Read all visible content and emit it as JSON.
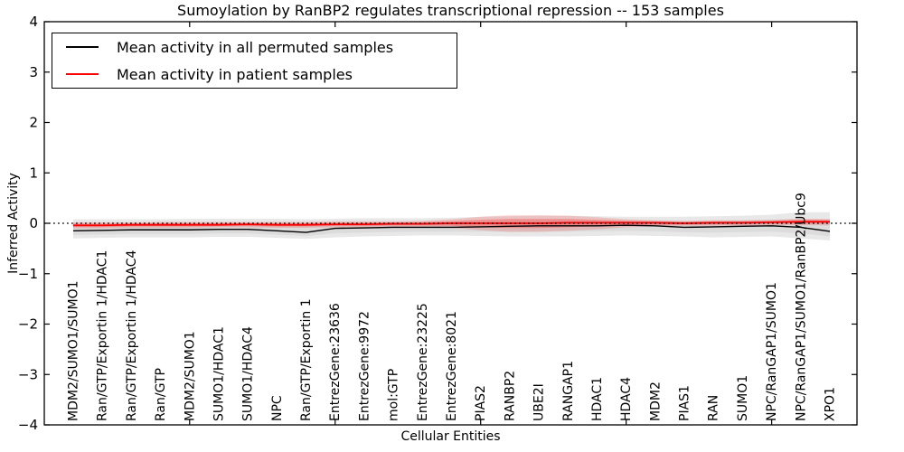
{
  "figure": {
    "title": "Sumoylation by RanBP2 regulates transcriptional repression -- 153 samples",
    "xlabel": "Cellular Entities",
    "ylabel": "Inferred Activity",
    "legend": [
      {
        "label": "Mean activity in all permuted samples",
        "color": "#000000"
      },
      {
        "label": "Mean activity in patient samples",
        "color": "#ff0000"
      }
    ]
  },
  "chart_data": {
    "type": "line",
    "title": "Sumoylation by RanBP2 regulates transcriptional repression -- 153 samples",
    "xlabel": "Cellular Entities",
    "ylabel": "Inferred Activity",
    "ylim": [
      -4,
      4
    ],
    "yticks": [
      4,
      3,
      2,
      1,
      0,
      -1,
      -2,
      -3,
      -4
    ],
    "ytick_labels": [
      "4",
      "3",
      "2",
      "1",
      "0",
      "−1",
      "−2",
      "−3",
      "−4"
    ],
    "grid": false,
    "legend_position": "upper left",
    "zero_line": {
      "y": 0,
      "style": "dotted",
      "color": "#000000"
    },
    "categories": [
      "MDM2/SUMO1/SUMO1",
      "Ran/GTP/Exportin 1/HDAC1",
      "Ran/GTP/Exportin 1/HDAC4",
      "Ran/GTP",
      "MDM2/SUMO1",
      "SUMO1/HDAC1",
      "SUMO1/HDAC4",
      "NPC",
      "Ran/GTP/Exportin 1",
      "EntrezGene:23636",
      "EntrezGene:9972",
      "mol:GTP",
      "EntrezGene:23225",
      "EntrezGene:8021",
      "PIAS2",
      "RANBP2",
      "UBE2I",
      "RANGAP1",
      "HDAC1",
      "HDAC4",
      "MDM2",
      "PIAS1",
      "RAN",
      "SUMO1",
      "NPC/RanGAP1/SUMO1",
      "NPC/RanGAP1/SUMO1/RanBP2/Ubc9",
      "XPO1"
    ],
    "series": [
      {
        "name": "Mean activity in all permuted samples",
        "color": "#000000",
        "values": [
          -0.15,
          -0.14,
          -0.13,
          -0.13,
          -0.13,
          -0.12,
          -0.12,
          -0.15,
          -0.18,
          -0.1,
          -0.09,
          -0.08,
          -0.08,
          -0.08,
          -0.07,
          -0.06,
          -0.05,
          -0.05,
          -0.05,
          -0.04,
          -0.05,
          -0.08,
          -0.07,
          -0.06,
          -0.05,
          -0.08,
          -0.16
        ]
      },
      {
        "name": "Mean activity in patient samples",
        "color": "#ff0000",
        "values": [
          -0.04,
          -0.04,
          -0.03,
          -0.03,
          -0.03,
          -0.03,
          -0.02,
          -0.03,
          -0.03,
          -0.02,
          -0.02,
          -0.01,
          -0.01,
          0.0,
          0.0,
          0.0,
          0.0,
          0.01,
          0.01,
          0.01,
          0.01,
          0.0,
          0.01,
          0.01,
          0.02,
          0.03,
          0.03
        ]
      }
    ],
    "bands": [
      {
        "name": "permuted-samples-range",
        "color": "rgba(0,0,0,0.09)",
        "inner_color": "rgba(0,0,0,0.05)",
        "upper": [
          0.08,
          0.08,
          0.08,
          0.08,
          0.09,
          0.09,
          0.09,
          0.09,
          0.08,
          0.09,
          0.1,
          0.1,
          0.1,
          0.11,
          0.13,
          0.14,
          0.15,
          0.15,
          0.14,
          0.13,
          0.13,
          0.13,
          0.14,
          0.15,
          0.17,
          0.22,
          0.22
        ],
        "lower": [
          -0.3,
          -0.29,
          -0.28,
          -0.28,
          -0.28,
          -0.27,
          -0.27,
          -0.29,
          -0.31,
          -0.28,
          -0.26,
          -0.25,
          -0.24,
          -0.24,
          -0.25,
          -0.26,
          -0.26,
          -0.26,
          -0.25,
          -0.24,
          -0.25,
          -0.26,
          -0.28,
          -0.27,
          -0.26,
          -0.3,
          -0.34
        ]
      },
      {
        "name": "patient-samples-range",
        "color": "rgba(255,0,0,0.16)",
        "inner_color": "rgba(255,0,0,0.24)",
        "upper": [
          0.02,
          0.02,
          0.02,
          0.03,
          0.03,
          0.03,
          0.03,
          0.03,
          0.03,
          0.04,
          0.04,
          0.04,
          0.05,
          0.08,
          0.13,
          0.16,
          0.16,
          0.15,
          0.12,
          0.08,
          0.06,
          0.05,
          0.06,
          0.06,
          0.07,
          0.09,
          0.09
        ],
        "lower": [
          -0.1,
          -0.1,
          -0.09,
          -0.09,
          -0.09,
          -0.08,
          -0.08,
          -0.09,
          -0.09,
          -0.08,
          -0.08,
          -0.07,
          -0.07,
          -0.09,
          -0.14,
          -0.17,
          -0.17,
          -0.15,
          -0.12,
          -0.08,
          -0.06,
          -0.05,
          -0.05,
          -0.05,
          -0.04,
          -0.04,
          -0.04
        ]
      }
    ]
  }
}
